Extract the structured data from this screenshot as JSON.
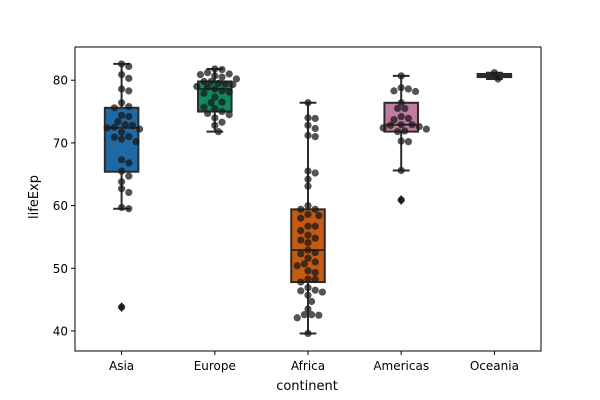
{
  "chart_data": {
    "type": "box",
    "title": "",
    "xlabel": "continent",
    "ylabel": "lifeExp",
    "ylim": [
      36.8,
      85.3
    ],
    "yticks": [
      40,
      50,
      60,
      70,
      80
    ],
    "grid": false,
    "categories": [
      {
        "name": "Asia",
        "color": "#1f6aa5",
        "box": {
          "whisker_low": 59.5,
          "q1": 65.4,
          "median": 72.4,
          "q3": 75.6,
          "whisker_high": 82.6
        },
        "outliers": [
          43.8
        ],
        "points": [
          82.6,
          82.2,
          80.9,
          80.3,
          78.6,
          78.3,
          76.4,
          75.8,
          75.6,
          74.4,
          74.2,
          73.4,
          72.9,
          72.8,
          72.5,
          72.4,
          72.2,
          71.7,
          71.0,
          70.9,
          70.6,
          70.2,
          67.3,
          66.8,
          65.5,
          64.7,
          63.8,
          62.7,
          62.1,
          59.7,
          59.5,
          43.8
        ]
      },
      {
        "name": "Europe",
        "color": "#0d8a5f",
        "box": {
          "whisker_low": 71.8,
          "q1": 75.0,
          "median": 78.6,
          "q3": 79.8,
          "whisker_high": 81.8
        },
        "outliers": [],
        "points": [
          81.8,
          81.7,
          81.2,
          81.0,
          80.9,
          80.7,
          80.5,
          80.2,
          79.8,
          79.8,
          79.5,
          79.4,
          79.3,
          79.0,
          78.9,
          78.6,
          78.3,
          78.1,
          77.9,
          77.3,
          76.5,
          76.4,
          75.7,
          75.5,
          75.0,
          74.7,
          74.5,
          74.0,
          73.3,
          72.8,
          71.8
        ]
      },
      {
        "name": "Africa",
        "color": "#c55a11",
        "box": {
          "whisker_low": 39.6,
          "q1": 47.8,
          "median": 52.9,
          "q3": 59.4,
          "whisker_high": 76.4
        },
        "outliers": [],
        "points": [
          76.4,
          74.0,
          73.9,
          72.8,
          72.3,
          71.2,
          71.0,
          65.5,
          65.2,
          64.2,
          63.1,
          60.0,
          59.4,
          59.4,
          58.6,
          58.4,
          58.0,
          56.7,
          56.7,
          56.0,
          55.3,
          54.8,
          54.5,
          54.1,
          52.9,
          52.5,
          52.3,
          51.6,
          51.0,
          50.7,
          50.4,
          49.6,
          49.3,
          48.3,
          48.2,
          47.8,
          46.9,
          46.5,
          46.4,
          46.2,
          45.7,
          44.7,
          43.5,
          42.6,
          42.6,
          42.5,
          42.1,
          39.6
        ]
      },
      {
        "name": "Americas",
        "color": "#c27aa0",
        "box": {
          "whisker_low": 65.6,
          "q1": 71.8,
          "median": 72.9,
          "q3": 76.4,
          "whisker_high": 80.7
        },
        "outliers": [
          60.9
        ],
        "points": [
          80.7,
          78.8,
          78.6,
          78.3,
          78.2,
          76.4,
          75.5,
          75.5,
          74.2,
          73.9,
          73.7,
          72.9,
          72.9,
          72.8,
          72.6,
          72.4,
          72.2,
          71.9,
          71.8,
          70.3,
          70.2,
          65.6,
          60.9
        ]
      },
      {
        "name": "Oceania",
        "color": "#2b2b2b",
        "box": {
          "whisker_low": 80.2,
          "q1": 80.5,
          "median": 80.7,
          "q3": 81.0,
          "whisker_high": 81.2
        },
        "outliers": [],
        "points": [
          81.2,
          80.2
        ]
      }
    ]
  }
}
